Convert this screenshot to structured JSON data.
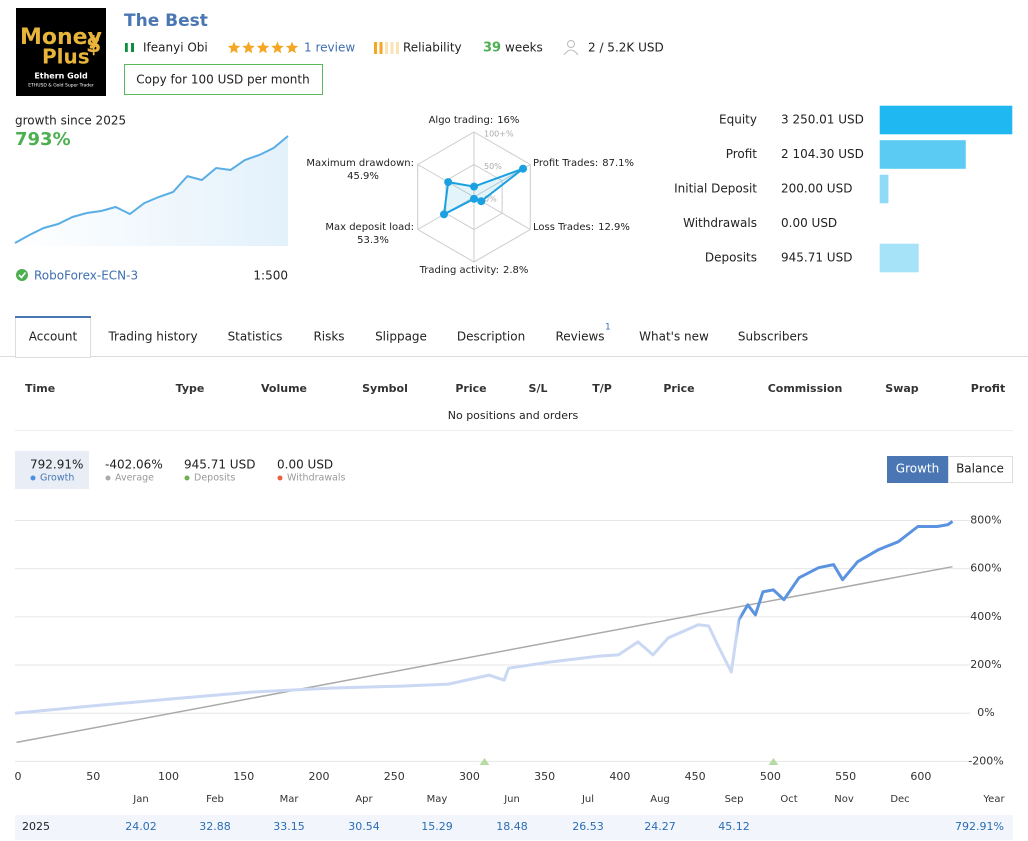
{
  "header": {
    "logo": {
      "line1": "Money",
      "line2": "Plus",
      "symbol": "$",
      "name": "Ethern Gold",
      "tagline": "ETHUSD & Gold Super Trader"
    },
    "title": "The Best",
    "author": "Ifeanyi Obi",
    "rating": 5,
    "reviews": "1 review",
    "reliability": "Reliability",
    "reliability_level": 2,
    "weeks": 39,
    "weeks_label": "weeks",
    "subscribers": "2 / 5.2K USD",
    "copy_button": "Copy for 100 USD per month"
  },
  "summary": {
    "growth_label": "growth since 2025",
    "growth": "793%",
    "broker": "RoboForex-ECN-3",
    "leverage": "1:500",
    "sparkline": {
      "type": "line",
      "color": "#5aaee6",
      "values": [
        0,
        59,
        111,
        141,
        193,
        222,
        237,
        267,
        215,
        296,
        341,
        378,
        496,
        467,
        556,
        541,
        615,
        652,
        704,
        793
      ]
    }
  },
  "radar": {
    "type": "radar",
    "color": "#1ba1e2",
    "rlim": [
      0,
      100
    ],
    "rticks": [
      {
        "value": 100,
        "label": "100+%"
      },
      {
        "value": 50,
        "label": "50%"
      },
      {
        "value": 0,
        "label": "0%"
      }
    ],
    "axes": [
      {
        "name": "Algo trading:",
        "value": 16,
        "value_label": "16%"
      },
      {
        "name": "Profit Trades:",
        "value": 87.1,
        "value_label": "87.1%"
      },
      {
        "name": "Loss Trades:",
        "value": 12.9,
        "value_label": "12.9%"
      },
      {
        "name": "Trading activity:",
        "value": 2.8,
        "value_label": "2.8%"
      },
      {
        "name": "Max deposit load:",
        "value": 53.3,
        "value_label": "53.3%"
      },
      {
        "name": "Maximum drawdown:",
        "value": 45.9,
        "value_label": "45.9%"
      }
    ]
  },
  "balance_bars": {
    "type": "bar",
    "orientation": "horizontal",
    "categories": [
      "Equity",
      "Profit",
      "Initial Deposit",
      "Withdrawals",
      "Deposits"
    ],
    "values": [
      3250.01,
      2104.3,
      200,
      0,
      945.71
    ],
    "value_labels": [
      "3 250.01 USD",
      "2 104.30 USD",
      "200.00 USD",
      "0.00 USD",
      "945.71 USD"
    ],
    "colors": [
      "#1fb8f1",
      "#5ccbf4",
      "#8fdaf6",
      "#a6e2f8",
      "#a6e2f8"
    ],
    "xlim": [
      0,
      3250.01
    ]
  },
  "tabs": {
    "items": [
      "Account",
      "Trading history",
      "Statistics",
      "Risks",
      "Slippage",
      "Description",
      "Reviews",
      "What's new",
      "Subscribers"
    ],
    "active": 0,
    "reviews_badge": 1
  },
  "positions": {
    "columns": [
      "Time",
      "Type",
      "Volume",
      "Symbol",
      "Price",
      "S/L",
      "T/P",
      "Price",
      "Commission",
      "Swap",
      "Profit"
    ],
    "empty": "No positions and orders"
  },
  "growth_chart": {
    "type": "line",
    "stats": [
      {
        "value": "792.91%",
        "label": "Growth",
        "color": "#4a90e2"
      },
      {
        "value": "-402.06%",
        "label": "Average",
        "color": "#aaaaaa"
      },
      {
        "value": "945.71 USD",
        "label": "Deposits",
        "color": "#6ab04c"
      },
      {
        "value": "0.00 USD",
        "label": "Withdrawals",
        "color": "#e8603c"
      }
    ],
    "buttons": [
      "Growth",
      "Balance"
    ],
    "active_button": 0,
    "xlim": [
      -2,
      626
    ],
    "ylim": [
      -215,
      885
    ],
    "xticks": [
      0,
      50,
      100,
      150,
      200,
      250,
      300,
      350,
      400,
      450,
      500,
      550,
      600
    ],
    "yticks": [
      {
        "value": -200,
        "label": "-200%"
      },
      {
        "value": 0,
        "label": "0%"
      },
      {
        "value": 200,
        "label": "200%"
      },
      {
        "value": 400,
        "label": "400%"
      },
      {
        "value": 600,
        "label": "600%"
      },
      {
        "value": 800,
        "label": "800%"
      }
    ],
    "grid": true,
    "series": [
      {
        "color": "#5b93e0",
        "x": [
          -2,
          54,
          107,
          154,
          207,
          253,
          286,
          313,
          323,
          326,
          353,
          386,
          399,
          412,
          422,
          432,
          452,
          459,
          465,
          474,
          479,
          485,
          490,
          495,
          502,
          509,
          519,
          532,
          542,
          548,
          558,
          572,
          585,
          598,
          611,
          618,
          621
        ],
        "values": [
          0,
          33,
          62,
          87,
          104,
          112,
          121,
          158,
          137,
          187,
          212,
          237,
          242,
          296,
          242,
          312,
          367,
          362,
          283,
          171,
          387,
          450,
          408,
          504,
          512,
          471,
          562,
          604,
          617,
          554,
          629,
          679,
          712,
          775,
          775,
          783,
          796
        ]
      },
      {
        "color": "#aaaaaa",
        "x": [
          -1,
          621
        ],
        "values": [
          -121,
          608
        ]
      }
    ],
    "markers": {
      "x": [
        310,
        502
      ],
      "color": "#b7dca3"
    }
  },
  "monthly": {
    "months": [
      "Jan",
      "Feb",
      "Mar",
      "Apr",
      "May",
      "Jun",
      "Jul",
      "Aug",
      "Sep",
      "Oct",
      "Nov",
      "Dec"
    ],
    "total_label": "Year",
    "year": 2025,
    "values": [
      24.02,
      32.88,
      33.15,
      30.54,
      15.29,
      18.48,
      26.53,
      24.27,
      45.12,
      null,
      null,
      null
    ],
    "total": "792.91%"
  }
}
